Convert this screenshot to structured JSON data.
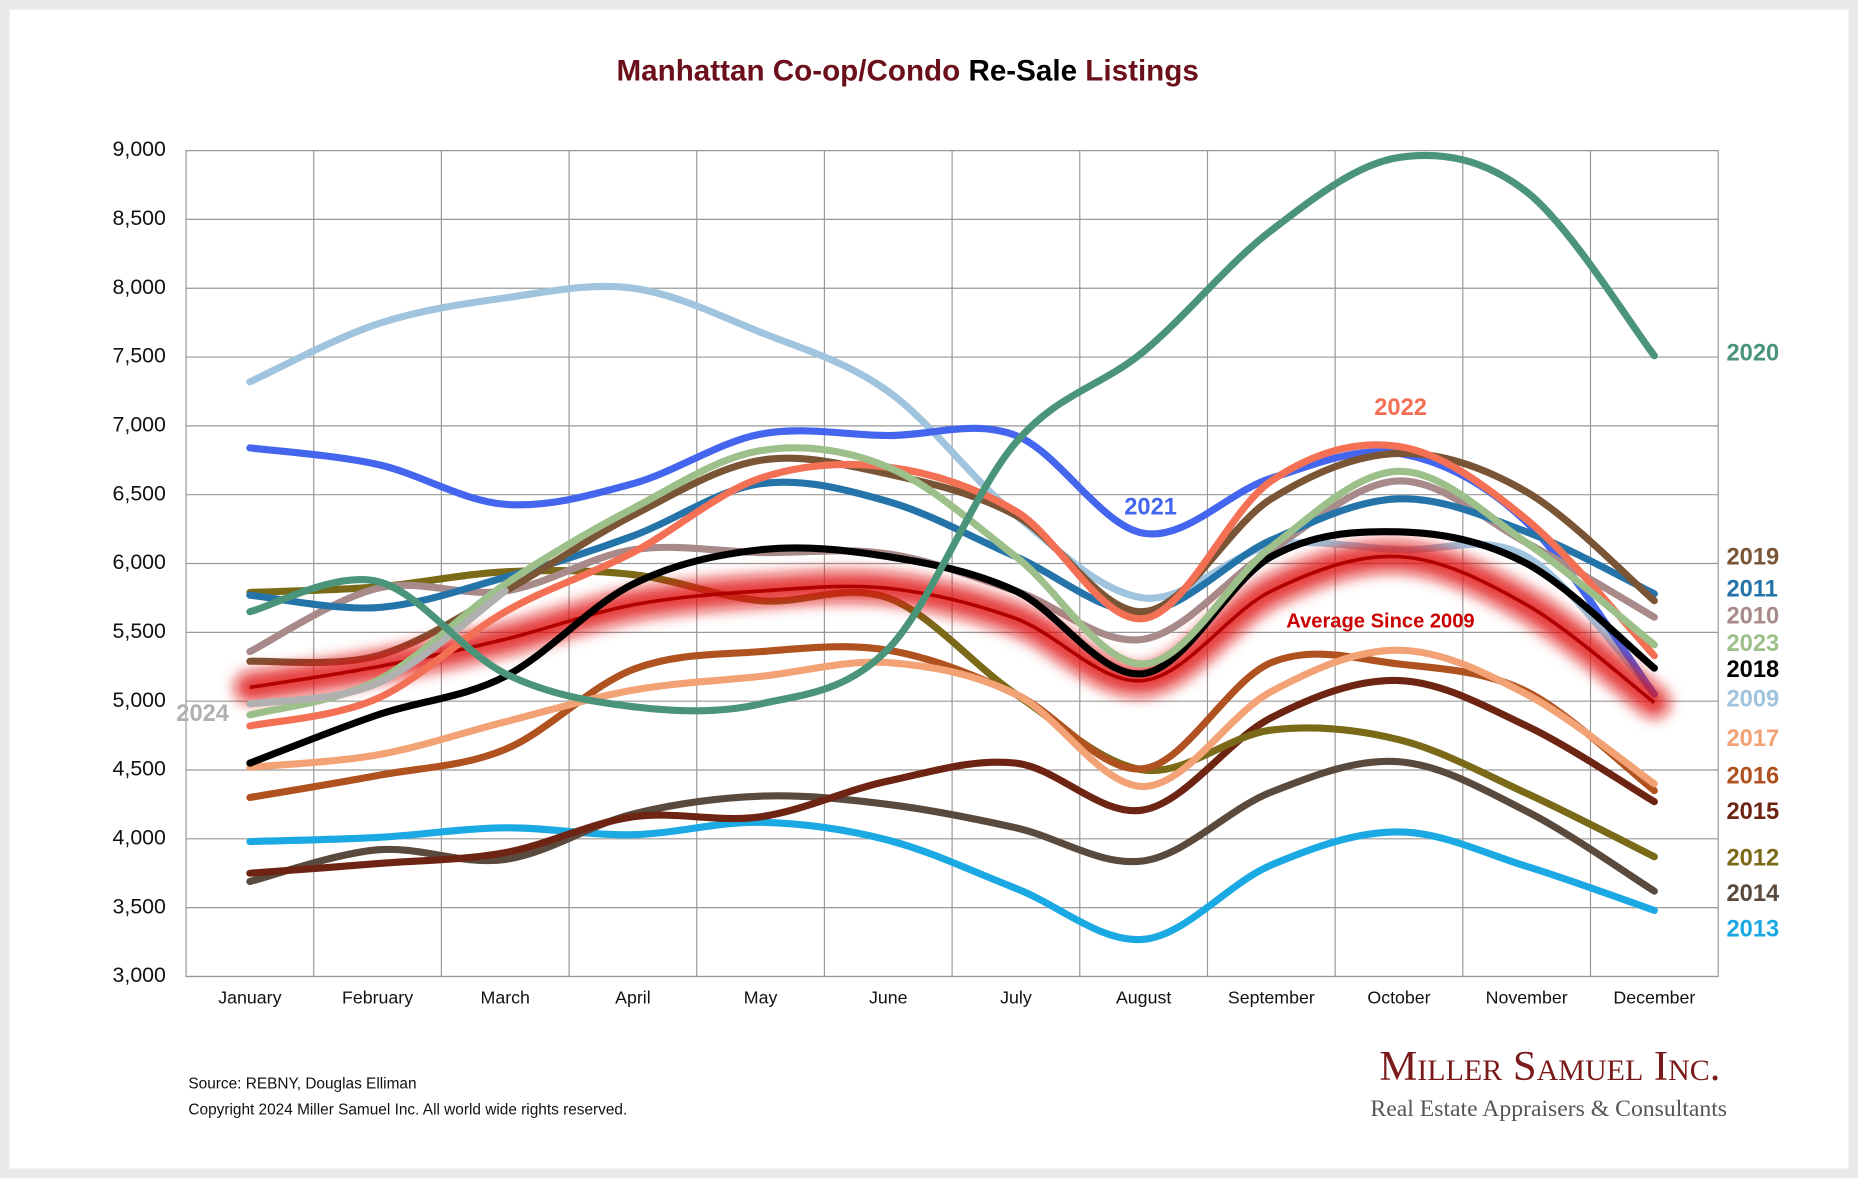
{
  "chart_data": {
    "type": "line",
    "title": [
      "Manhattan Co-op/Condo",
      "Re-Sale",
      "Listings"
    ],
    "categories": [
      "January",
      "February",
      "March",
      "April",
      "May",
      "June",
      "July",
      "August",
      "September",
      "October",
      "November",
      "December"
    ],
    "ylim": [
      3000,
      9000
    ],
    "yticks": [
      {
        "value": 3000,
        "label": "3,000"
      },
      {
        "value": 3500,
        "label": "3,500"
      },
      {
        "value": 4000,
        "label": "4,000"
      },
      {
        "value": 4500,
        "label": "4,500"
      },
      {
        "value": 5000,
        "label": "5,000"
      },
      {
        "value": 5500,
        "label": "5,500"
      },
      {
        "value": 6000,
        "label": "6,000"
      },
      {
        "value": 6500,
        "label": "6,500"
      },
      {
        "value": 7000,
        "label": "7,000"
      },
      {
        "value": 7500,
        "label": "7,500"
      },
      {
        "value": 8000,
        "label": "8,000"
      },
      {
        "value": 8500,
        "label": "8,500"
      },
      {
        "value": 9000,
        "label": "9,000"
      }
    ],
    "grid": true,
    "series": [
      {
        "name": "2013",
        "color": "#1ba9e3",
        "values": [
          3980,
          4010,
          4080,
          4030,
          4120,
          3990,
          3640,
          3270,
          3810,
          4050,
          3800,
          3480
        ]
      },
      {
        "name": "2014",
        "color": "#5a4a3e",
        "values": [
          3690,
          3920,
          3850,
          4180,
          4310,
          4250,
          4080,
          3840,
          4340,
          4560,
          4200,
          3620
        ]
      },
      {
        "name": "2015",
        "color": "#6e2412",
        "values": [
          3750,
          3820,
          3900,
          4160,
          4160,
          4420,
          4550,
          4210,
          4880,
          5150,
          4820,
          4270
        ]
      },
      {
        "name": "2012",
        "color": "#7a6a18",
        "values": [
          5790,
          5830,
          5940,
          5920,
          5730,
          5750,
          5050,
          4500,
          4790,
          4720,
          4330,
          3870
        ]
      },
      {
        "name": "2016",
        "color": "#b0521f",
        "values": [
          4300,
          4460,
          4650,
          5230,
          5360,
          5370,
          5050,
          4510,
          5280,
          5270,
          5070,
          4350
        ]
      },
      {
        "name": "2017",
        "color": "#f2a274",
        "values": [
          4520,
          4610,
          4850,
          5080,
          5180,
          5280,
          5050,
          4380,
          5070,
          5370,
          5050,
          4400
        ]
      },
      {
        "name": "2009",
        "color": "#a0c4de",
        "values": [
          7320,
          7740,
          7930,
          8000,
          7680,
          7250,
          6350,
          5750,
          6130,
          6100,
          6050,
          5050
        ]
      },
      {
        "name": "2021",
        "color": "#4466ee",
        "values": [
          6840,
          6720,
          6430,
          6580,
          6940,
          6930,
          6930,
          6220,
          6620,
          6800,
          6300,
          5050
        ]
      },
      {
        "name": "2010",
        "color": "#a88a8a",
        "values": [
          5360,
          5820,
          5800,
          6100,
          6080,
          6070,
          5800,
          5450,
          6100,
          6600,
          6150,
          5610
        ]
      },
      {
        "name": "2011",
        "color": "#2574a9",
        "values": [
          5770,
          5680,
          5900,
          6200,
          6580,
          6450,
          6050,
          5650,
          6170,
          6470,
          6230,
          5780
        ]
      },
      {
        "name": "2019",
        "color": "#7a5535",
        "values": [
          5290,
          5330,
          5800,
          6350,
          6750,
          6650,
          6350,
          5650,
          6470,
          6800,
          6520,
          5730
        ]
      },
      {
        "name": "Average  Since 2009",
        "color": "#e01010",
        "values": [
          5100,
          5250,
          5450,
          5700,
          5800,
          5820,
          5600,
          5150,
          5800,
          6050,
          5700,
          4990
        ]
      },
      {
        "name": "2018",
        "color": "#000000",
        "values": [
          4550,
          4900,
          5180,
          5850,
          6100,
          6050,
          5800,
          5200,
          6050,
          6230,
          6000,
          5240
        ]
      },
      {
        "name": "2022",
        "color": "#f47055",
        "values": [
          4820,
          5020,
          5650,
          6080,
          6620,
          6700,
          6380,
          5600,
          6600,
          6850,
          6320,
          5330
        ]
      },
      {
        "name": "2023",
        "color": "#9dc08a",
        "values": [
          4900,
          5150,
          5850,
          6400,
          6820,
          6700,
          6050,
          5270,
          6120,
          6670,
          6150,
          5410
        ]
      },
      {
        "name": "2024",
        "color": "#b0b0b0",
        "values": [
          4980,
          5130,
          5800,
          null,
          null,
          null,
          null,
          null,
          null,
          null,
          null,
          null
        ]
      },
      {
        "name": "2020",
        "color": "#4a9479",
        "values": [
          5650,
          5870,
          5200,
          4960,
          4980,
          5380,
          6880,
          7540,
          8420,
          8950,
          8700,
          7510
        ]
      }
    ],
    "source": "Source: REBNY, Douglas Elliman",
    "copyright": "Copyright 2024 Miller Samuel Inc.  All world wide rights reserved."
  },
  "logo": {
    "name": "Miller Samuel Inc.",
    "tagline": "Real Estate Appraisers & Consultants"
  }
}
